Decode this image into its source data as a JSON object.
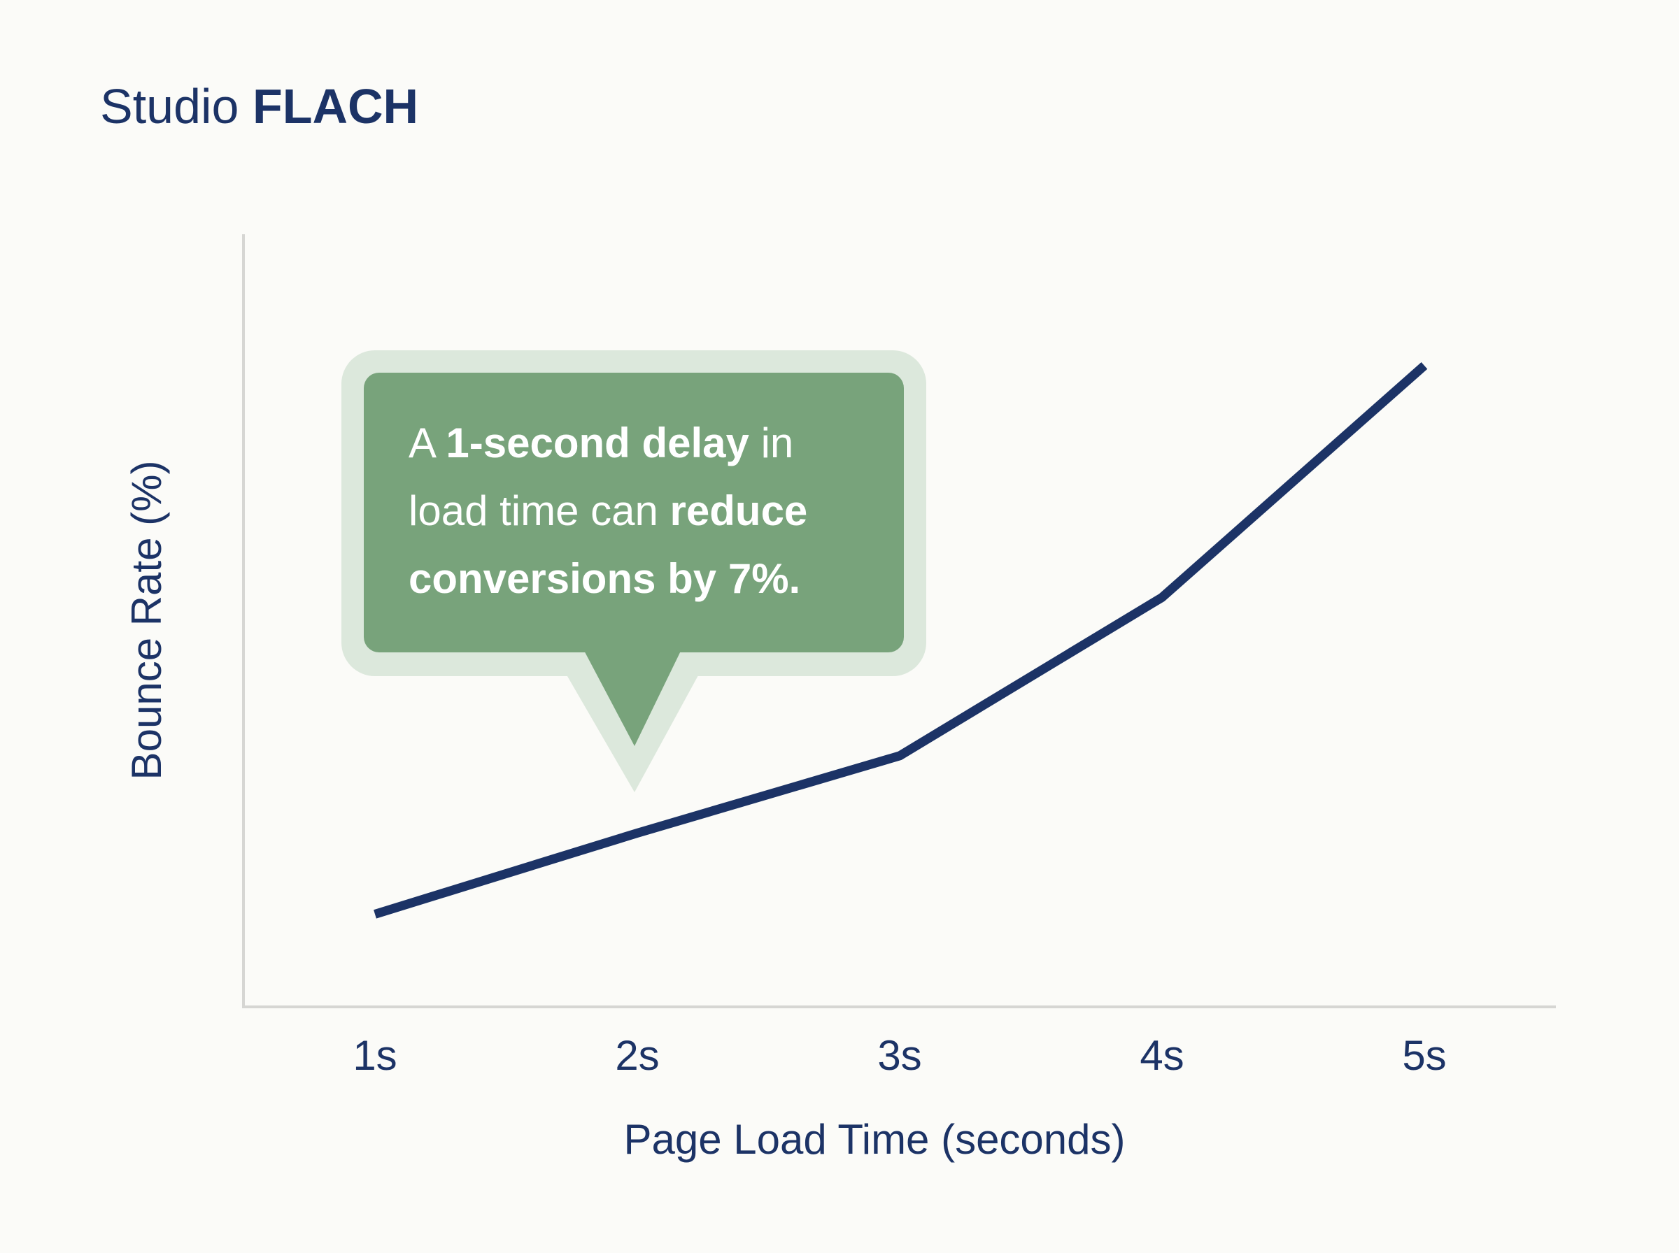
{
  "brand": {
    "name_regular": "Studio",
    "name_bold": "FLACH"
  },
  "colors": {
    "background": "#fbfbf8",
    "line": "#1c3366",
    "axis": "#d6d6d3",
    "callout_fill": "#78a37b",
    "callout_halo": "#dce8dc",
    "callout_text": "#ffffff"
  },
  "callout": {
    "line1": {
      "pre": "A ",
      "bold": "1-second delay",
      "post": " in"
    },
    "line2": {
      "pre": "load time can ",
      "bold": "reduce",
      "post": ""
    },
    "line3": {
      "pre": "",
      "bold": "conversions by 7%.",
      "post": ""
    }
  },
  "chart_data": {
    "type": "line",
    "title": "",
    "xlabel": "Page Load Time (seconds)",
    "ylabel": "Bounce Rate (%)",
    "categories": [
      "1s",
      "2s",
      "3s",
      "4s",
      "5s"
    ],
    "y_ticks_shown": false,
    "grid": false,
    "legend": "none",
    "series": [
      {
        "values": [
          12,
          22.5,
          32.5,
          53,
          83
        ]
      }
    ],
    "ylim": [
      0,
      100
    ]
  }
}
